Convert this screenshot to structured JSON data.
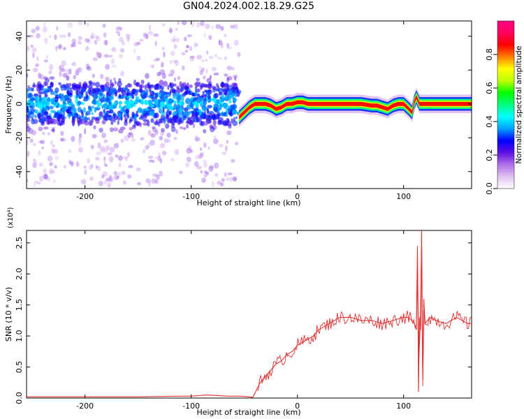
{
  "title": "GN04.2024.002.18.29.G25",
  "chart_data": [
    {
      "type": "heatmap",
      "title": "GN04.2024.002.18.29.G25",
      "xlabel": "Height of straight line (km)",
      "ylabel": "Frequency (Hz)",
      "xlim": [
        -255,
        164
      ],
      "ylim": [
        -50,
        49
      ],
      "xticks": [
        -200,
        -100,
        0,
        100
      ],
      "yticks": [
        -40,
        -20,
        0,
        20,
        40
      ],
      "colorbar": {
        "label": "Normalized spectral amplitude",
        "range": [
          0.0,
          1.0
        ],
        "ticks": [
          "0.0",
          "0.2",
          "0.4",
          "0.6",
          "0.8"
        ],
        "colors": [
          "#ffffff",
          "#e0c0f0",
          "#b070e8",
          "#6010e0",
          "#0000ff",
          "#00a0ff",
          "#00ffff",
          "#00ff80",
          "#00ff00",
          "#c0ff00",
          "#ffff00",
          "#ff8000",
          "#ff0000",
          "#ff0060",
          "#ff0080"
        ]
      },
      "ridge": {
        "x": [
          -55,
          -50,
          -45,
          -40,
          -35,
          -30,
          -25,
          -20,
          -15,
          -10,
          -5,
          0,
          5,
          10,
          20,
          30,
          40,
          50,
          60,
          70,
          75,
          80,
          85,
          90,
          95,
          100,
          105,
          108,
          110,
          112,
          115,
          120,
          130,
          140,
          150,
          164
        ],
        "y": [
          -8,
          -5,
          -2,
          0,
          0,
          0,
          -1,
          -3,
          -2,
          0,
          0,
          1,
          1,
          0,
          0,
          0,
          0,
          0,
          0,
          -1,
          -1,
          -2,
          -3,
          -1,
          0,
          0,
          -3,
          -5,
          1,
          4,
          0,
          0,
          0,
          0,
          0,
          0
        ]
      }
    },
    {
      "type": "line",
      "xlabel": "Height of straight line (km)",
      "ylabel": "SNR (10 * v/v)",
      "y_multiplier": "(x10⁴)",
      "xlim": [
        -255,
        164
      ],
      "ylim": [
        0.0,
        2.7
      ],
      "xticks": [
        -200,
        -100,
        0,
        100
      ],
      "yticks": [
        "0.0",
        "0.5",
        "1.0",
        "1.5",
        "2.0",
        "2.5"
      ],
      "series": [
        {
          "color": "#e03030",
          "x": [
            -255,
            -200,
            -150,
            -110,
            -100,
            -85,
            -75,
            -65,
            -55,
            -45,
            -42,
            -38,
            -35,
            -30,
            -25,
            -20,
            -15,
            -10,
            -5,
            0,
            5,
            10,
            15,
            20,
            25,
            30,
            35,
            40,
            50,
            60,
            70,
            80,
            90,
            100,
            105,
            110,
            112,
            113,
            114,
            115,
            116,
            117,
            118,
            119,
            120,
            125,
            130,
            140,
            150,
            160,
            164
          ],
          "y": [
            0.02,
            0.02,
            0.02,
            0.03,
            0.03,
            0.05,
            0.04,
            0.03,
            0.03,
            0.02,
            0.01,
            0.15,
            0.25,
            0.35,
            0.45,
            0.55,
            0.6,
            0.7,
            0.75,
            0.85,
            0.9,
            0.95,
            1.0,
            1.1,
            1.15,
            1.2,
            1.25,
            1.3,
            1.3,
            1.25,
            1.25,
            1.2,
            1.25,
            1.3,
            1.3,
            1.2,
            1.1,
            2.45,
            0.1,
            1.3,
            1.1,
            2.7,
            0.3,
            1.6,
            1.2,
            1.3,
            1.25,
            1.2,
            1.3,
            1.2,
            1.2
          ]
        }
      ]
    }
  ]
}
